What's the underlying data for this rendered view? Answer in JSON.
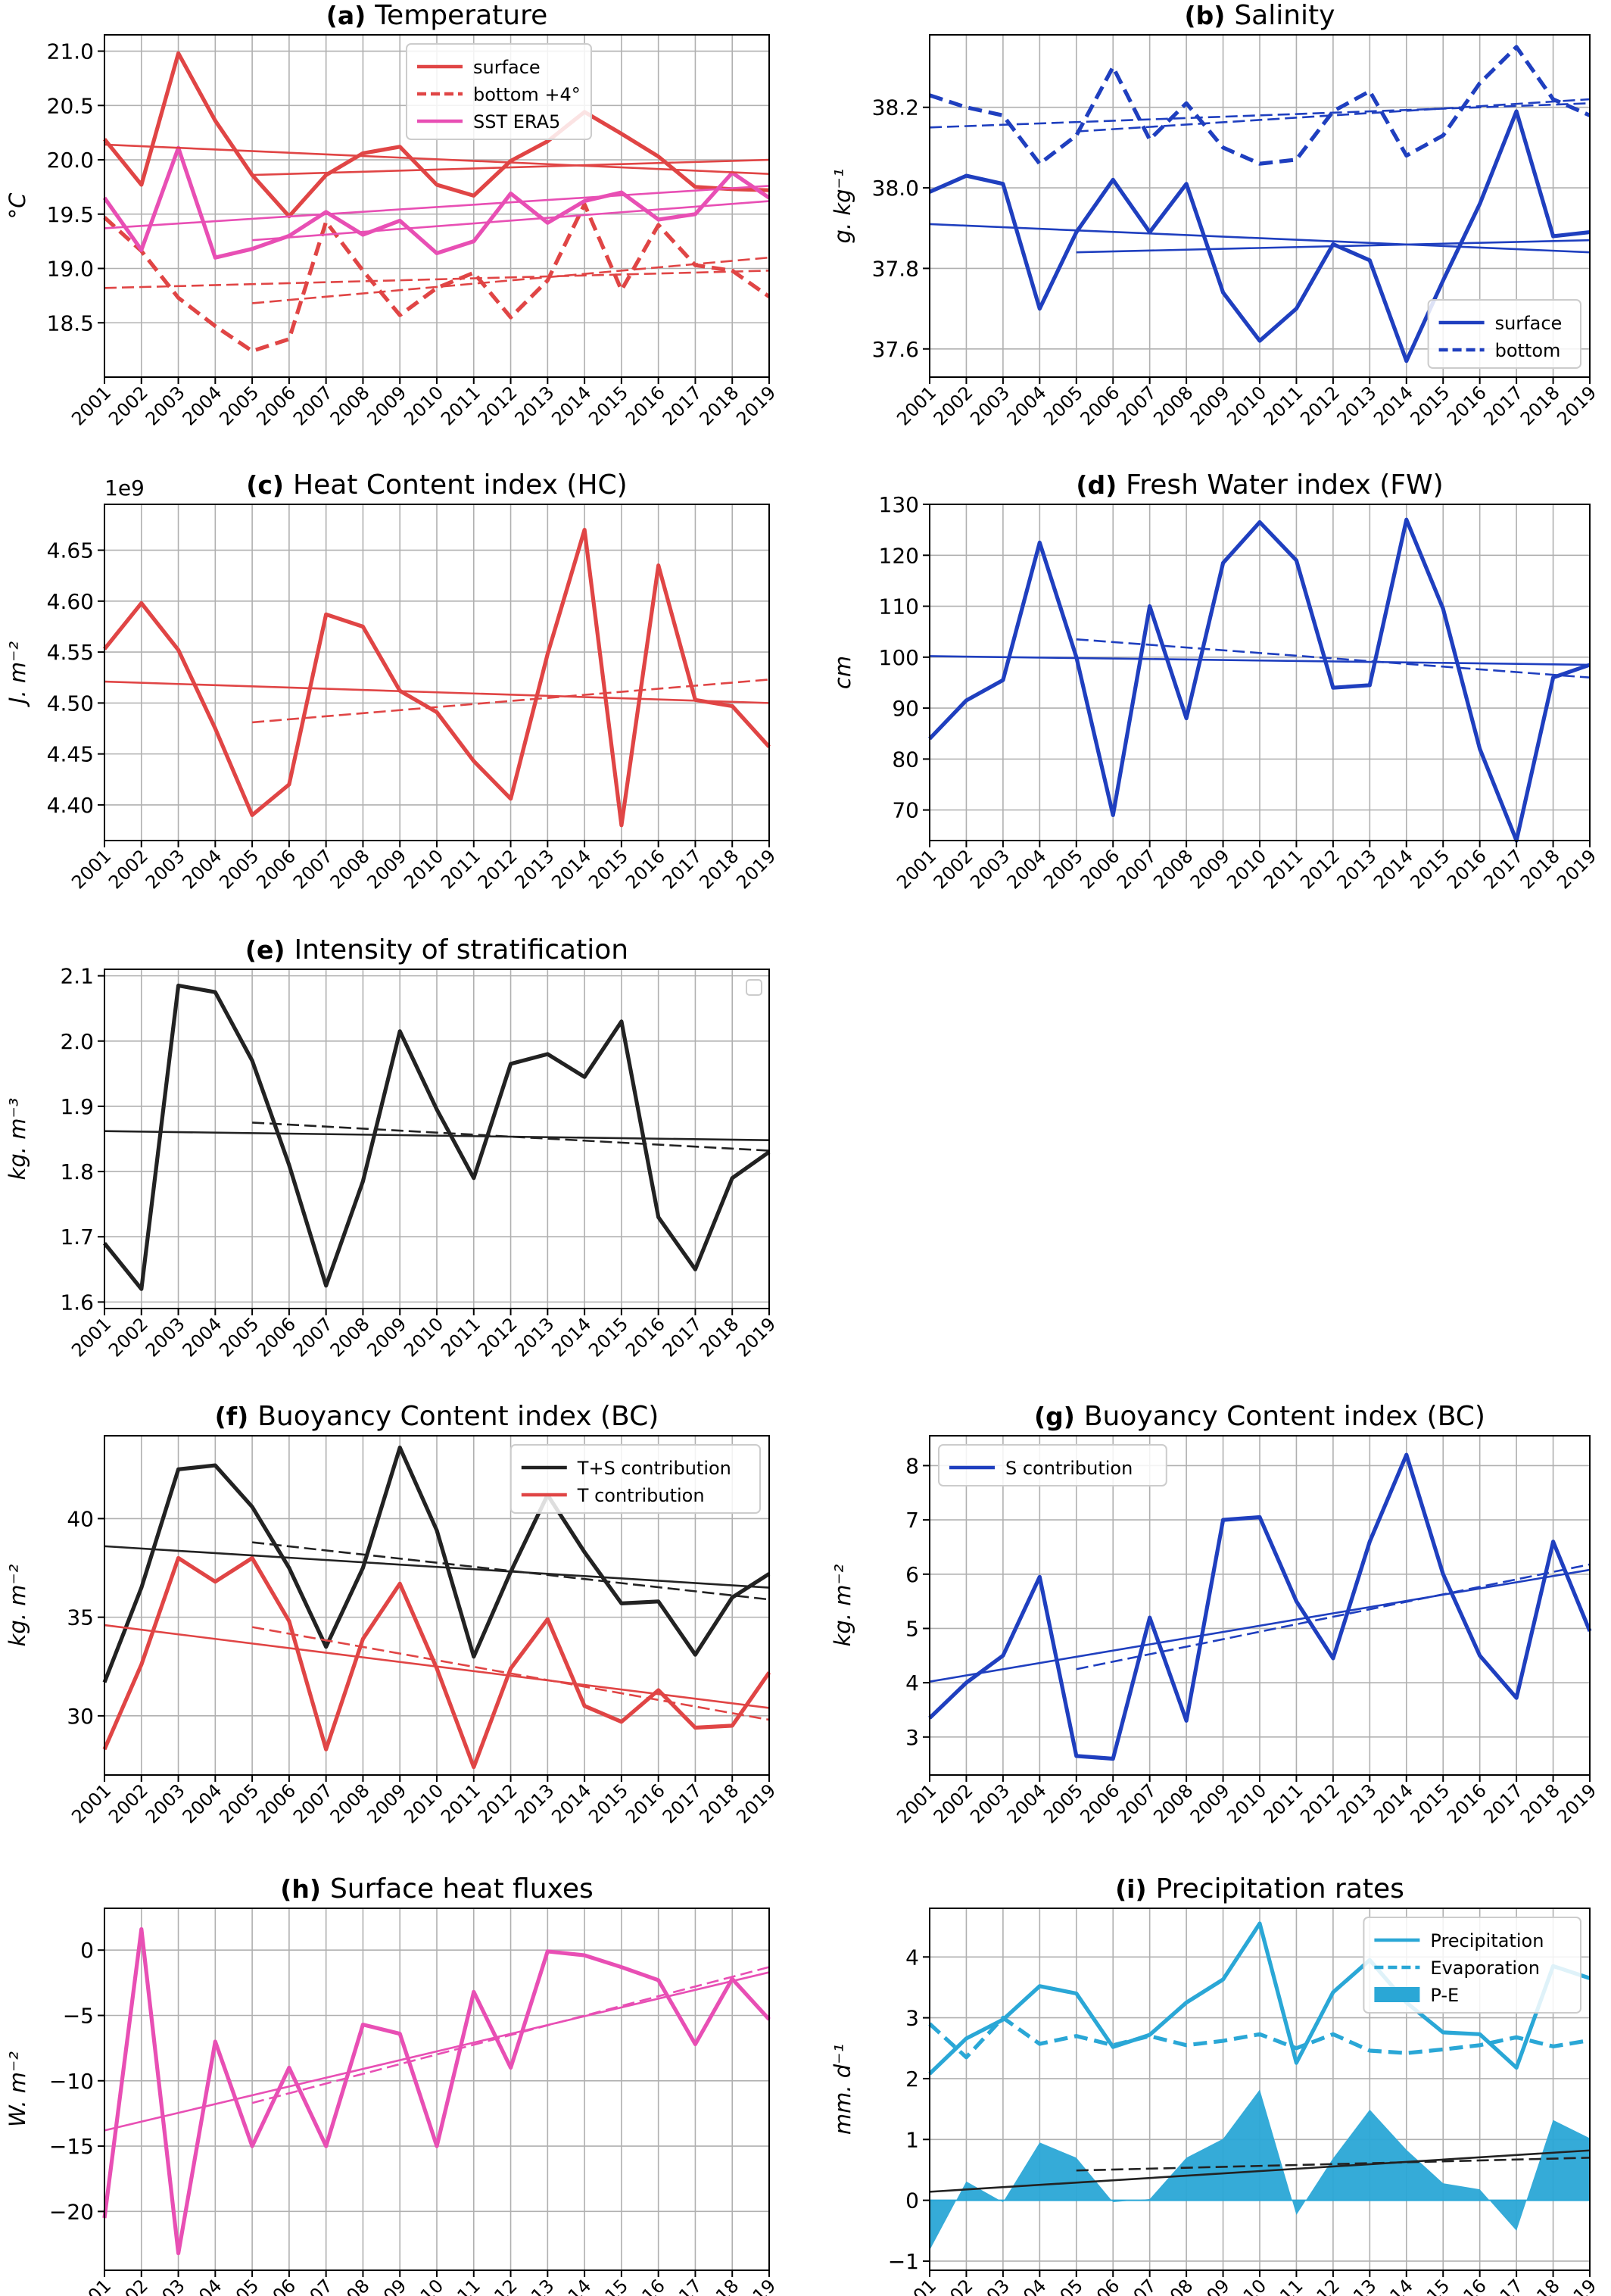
{
  "figure": {
    "years": [
      "2001",
      "2002",
      "2003",
      "2004",
      "2005",
      "2006",
      "2007",
      "2008",
      "2009",
      "2010",
      "2011",
      "2012",
      "2013",
      "2014",
      "2015",
      "2016",
      "2017",
      "2018",
      "2019"
    ]
  },
  "colors": {
    "red": "#e04545",
    "blue": "#1f3fbf",
    "black": "#222222",
    "pink": "#e84fb4",
    "cyan": "#2aa7d6",
    "grid": "#b0b0b0"
  },
  "chart_data": [
    {
      "id": "a",
      "type": "line",
      "title_prefix": "(a)",
      "title": "Temperature",
      "ylabel": "°C",
      "ylim": [
        18.0,
        21.15
      ],
      "yticks": [
        18.5,
        19.0,
        19.5,
        20.0,
        20.5,
        21.0
      ],
      "ytick_labels": [
        "18.5",
        "19.0",
        "19.5",
        "20.0",
        "20.5",
        "21.0"
      ],
      "grid": true,
      "legend_position": "top-center",
      "series": [
        {
          "name": "surface",
          "color": "red",
          "style": "solid",
          "values": [
            20.19,
            19.77,
            20.98,
            20.36,
            19.86,
            19.48,
            19.86,
            20.06,
            20.12,
            19.77,
            19.67,
            19.99,
            20.17,
            20.44,
            20.24,
            20.03,
            19.75,
            19.73,
            19.72
          ]
        },
        {
          "name": "bottom +4°",
          "color": "red",
          "style": "dashed",
          "values": [
            19.47,
            19.16,
            18.73,
            18.47,
            18.24,
            18.35,
            19.43,
            18.98,
            18.57,
            18.82,
            18.96,
            18.55,
            18.89,
            19.59,
            18.8,
            19.4,
            19.03,
            18.98,
            18.74
          ]
        },
        {
          "name": "SST ERA5",
          "color": "pink",
          "style": "solid",
          "values": [
            19.65,
            19.17,
            20.11,
            19.1,
            19.18,
            19.3,
            19.52,
            19.31,
            19.44,
            19.14,
            19.25,
            19.69,
            19.42,
            19.62,
            19.7,
            19.45,
            19.5,
            19.88,
            19.65
          ]
        }
      ],
      "trends": [
        {
          "color": "red",
          "style": "solid",
          "x0": "2001",
          "y0": 20.14,
          "x1": "2019",
          "y1": 19.87
        },
        {
          "color": "red",
          "style": "solid",
          "x0": "2005",
          "y0": 19.86,
          "x1": "2019",
          "y1": 20.0
        },
        {
          "color": "red",
          "style": "dashed",
          "x0": "2001",
          "y0": 18.82,
          "x1": "2019",
          "y1": 18.98
        },
        {
          "color": "red",
          "style": "dashed",
          "x0": "2005",
          "y0": 18.68,
          "x1": "2019",
          "y1": 19.1
        },
        {
          "color": "pink",
          "style": "solid",
          "x0": "2001",
          "y0": 19.37,
          "x1": "2019",
          "y1": 19.76
        },
        {
          "color": "pink",
          "style": "solid",
          "x0": "2005",
          "y0": 19.26,
          "x1": "2019",
          "y1": 19.62
        }
      ]
    },
    {
      "id": "b",
      "type": "line",
      "title_prefix": "(b)",
      "title": "Salinity",
      "ylabel": "g. kg⁻¹",
      "ylim": [
        37.53,
        38.38
      ],
      "yticks": [
        37.6,
        37.8,
        38.0,
        38.2
      ],
      "ytick_labels": [
        "37.6",
        "37.8",
        "38.0",
        "38.2"
      ],
      "grid": true,
      "legend_position": "bottom-right",
      "series": [
        {
          "name": "surface",
          "color": "blue",
          "style": "solid",
          "values": [
            37.99,
            38.03,
            38.01,
            37.7,
            37.89,
            38.02,
            37.89,
            38.01,
            37.74,
            37.62,
            37.7,
            37.86,
            37.82,
            37.57,
            37.77,
            37.96,
            38.19,
            37.88,
            37.89
          ]
        },
        {
          "name": "bottom",
          "color": "blue",
          "style": "dashed",
          "values": [
            38.23,
            38.2,
            38.18,
            38.06,
            38.13,
            38.3,
            38.12,
            38.21,
            38.1,
            38.06,
            38.07,
            38.19,
            38.24,
            38.08,
            38.13,
            38.26,
            38.35,
            38.22,
            38.18
          ]
        }
      ],
      "trends": [
        {
          "color": "blue",
          "style": "solid",
          "x0": "2001",
          "y0": 37.91,
          "x1": "2019",
          "y1": 37.84
        },
        {
          "color": "blue",
          "style": "solid",
          "x0": "2005",
          "y0": 37.84,
          "x1": "2019",
          "y1": 37.87
        },
        {
          "color": "blue",
          "style": "dashed",
          "x0": "2001",
          "y0": 38.15,
          "x1": "2019",
          "y1": 38.21
        },
        {
          "color": "blue",
          "style": "dashed",
          "x0": "2005",
          "y0": 38.14,
          "x1": "2019",
          "y1": 38.22
        }
      ]
    },
    {
      "id": "c",
      "type": "line",
      "title_prefix": "(c)",
      "title": "Heat Content index (HC)",
      "ylabel": "J. m⁻²",
      "offset_label": "1e9",
      "ylim": [
        4.365,
        4.695
      ],
      "yticks": [
        4.4,
        4.45,
        4.5,
        4.55,
        4.6,
        4.65
      ],
      "ytick_labels": [
        "4.40",
        "4.45",
        "4.50",
        "4.55",
        "4.60",
        "4.65"
      ],
      "grid": true,
      "series": [
        {
          "name": "HC",
          "color": "red",
          "style": "solid",
          "values": [
            4.553,
            4.598,
            4.552,
            4.475,
            4.39,
            4.42,
            4.587,
            4.575,
            4.512,
            4.491,
            4.443,
            4.406,
            4.548,
            4.67,
            4.38,
            4.635,
            4.503,
            4.497,
            4.457
          ]
        }
      ],
      "trends": [
        {
          "color": "red",
          "style": "solid",
          "x0": "2001",
          "y0": 4.521,
          "x1": "2019",
          "y1": 4.5
        },
        {
          "color": "red",
          "style": "dashed",
          "x0": "2005",
          "y0": 4.481,
          "x1": "2019",
          "y1": 4.523
        }
      ]
    },
    {
      "id": "d",
      "type": "line",
      "title_prefix": "(d)",
      "title": "Fresh Water index (FW)",
      "ylabel": "cm",
      "ylim": [
        64.0,
        130.0
      ],
      "yticks": [
        70,
        80,
        90,
        100,
        110,
        120,
        130
      ],
      "ytick_labels": [
        "70",
        "80",
        "90",
        "100",
        "110",
        "120",
        "130"
      ],
      "grid": true,
      "series": [
        {
          "name": "FW",
          "color": "blue",
          "style": "solid",
          "values": [
            84.0,
            91.5,
            95.5,
            122.5,
            100.0,
            69.0,
            110.0,
            88.0,
            118.5,
            126.5,
            119.0,
            94.0,
            94.5,
            127.0,
            109.5,
            82.0,
            64.0,
            96.0,
            98.5
          ]
        }
      ],
      "trends": [
        {
          "color": "blue",
          "style": "solid",
          "x0": "2001",
          "y0": 100.2,
          "x1": "2019",
          "y1": 98.5
        },
        {
          "color": "blue",
          "style": "dashed",
          "x0": "2005",
          "y0": 103.5,
          "x1": "2019",
          "y1": 96.0
        }
      ]
    },
    {
      "id": "e",
      "type": "line",
      "title_prefix": "(e)",
      "title": "Intensity of stratification",
      "ylabel": "kg. m⁻³",
      "ylim": [
        1.59,
        2.11
      ],
      "yticks": [
        1.6,
        1.7,
        1.8,
        1.9,
        2.0,
        2.1
      ],
      "ytick_labels": [
        "1.6",
        "1.7",
        "1.8",
        "1.9",
        "2.0",
        "2.1"
      ],
      "grid": true,
      "empty_legend": true,
      "series": [
        {
          "name": "stratification",
          "color": "black",
          "style": "solid",
          "values": [
            1.69,
            1.62,
            2.085,
            2.075,
            1.97,
            1.81,
            1.625,
            1.785,
            2.015,
            1.895,
            1.79,
            1.965,
            1.98,
            1.945,
            2.03,
            1.73,
            1.65,
            1.79,
            1.83
          ]
        }
      ],
      "trends": [
        {
          "color": "black",
          "style": "solid",
          "x0": "2001",
          "y0": 1.862,
          "x1": "2019",
          "y1": 1.848
        },
        {
          "color": "black",
          "style": "dashed",
          "x0": "2005",
          "y0": 1.875,
          "x1": "2019",
          "y1": 1.832
        }
      ]
    },
    {
      "id": "f",
      "type": "line",
      "title_prefix": "(f)",
      "title": "Buoyancy Content index (BC)",
      "ylabel": "kg. m⁻²",
      "ylim": [
        27.0,
        44.2
      ],
      "yticks": [
        30,
        35,
        40
      ],
      "ytick_labels": [
        "30",
        "35",
        "40"
      ],
      "grid": true,
      "legend_position": "top-right",
      "series": [
        {
          "name": "T+S contribution",
          "color": "black",
          "style": "solid",
          "values": [
            31.7,
            36.5,
            42.5,
            42.7,
            40.6,
            37.5,
            33.5,
            37.5,
            43.6,
            39.4,
            33.0,
            37.3,
            41.2,
            38.3,
            35.7,
            35.8,
            33.1,
            36.0,
            37.2
          ]
        },
        {
          "name": "T contribution",
          "color": "red",
          "style": "solid",
          "values": [
            28.3,
            32.6,
            38.0,
            36.8,
            38.0,
            34.8,
            28.3,
            33.9,
            36.7,
            32.4,
            27.4,
            32.4,
            34.9,
            30.5,
            29.7,
            31.3,
            29.4,
            29.5,
            32.2
          ]
        }
      ],
      "trends": [
        {
          "color": "black",
          "style": "solid",
          "x0": "2001",
          "y0": 38.6,
          "x1": "2019",
          "y1": 36.5
        },
        {
          "color": "black",
          "style": "dashed",
          "x0": "2005",
          "y0": 38.8,
          "x1": "2019",
          "y1": 35.9
        },
        {
          "color": "red",
          "style": "solid",
          "x0": "2001",
          "y0": 34.6,
          "x1": "2019",
          "y1": 30.4
        },
        {
          "color": "red",
          "style": "dashed",
          "x0": "2005",
          "y0": 34.5,
          "x1": "2019",
          "y1": 29.8
        }
      ]
    },
    {
      "id": "g",
      "type": "line",
      "title_prefix": "(g)",
      "title": "Buoyancy Content index (BC)",
      "ylabel": "kg. m⁻²",
      "ylim": [
        2.3,
        8.55
      ],
      "yticks": [
        3,
        4,
        5,
        6,
        7,
        8
      ],
      "ytick_labels": [
        "3",
        "4",
        "5",
        "6",
        "7",
        "8"
      ],
      "grid": true,
      "legend_position": "top-left",
      "series": [
        {
          "name": "S contribution",
          "color": "blue",
          "style": "solid",
          "values": [
            3.35,
            4.0,
            4.5,
            5.95,
            2.65,
            2.6,
            5.2,
            3.3,
            7.0,
            7.05,
            5.5,
            4.45,
            6.6,
            8.2,
            6.0,
            4.5,
            3.72,
            6.6,
            4.95
          ]
        }
      ],
      "trends": [
        {
          "color": "blue",
          "style": "solid",
          "x0": "2001",
          "y0": 4.02,
          "x1": "2019",
          "y1": 6.08
        },
        {
          "color": "blue",
          "style": "dashed",
          "x0": "2005",
          "y0": 4.25,
          "x1": "2019",
          "y1": 6.18
        }
      ]
    },
    {
      "id": "h",
      "type": "line",
      "title_prefix": "(h)",
      "title": "Surface heat fluxes",
      "ylabel": "W. m⁻²",
      "ylim": [
        -24.5,
        3.2
      ],
      "yticks": [
        -20,
        -15,
        -10,
        -5,
        0
      ],
      "ytick_labels": [
        "−20",
        "−15",
        "−10",
        "−5",
        "0"
      ],
      "grid": true,
      "series": [
        {
          "name": "heat fluxes",
          "color": "pink",
          "style": "solid",
          "values": [
            -20.5,
            1.6,
            -23.2,
            -7.0,
            -15.0,
            -9.0,
            -15.0,
            -5.7,
            -6.4,
            -15.0,
            -3.2,
            -9.0,
            -0.1,
            -0.4,
            -1.3,
            -2.3,
            -7.2,
            -2.2,
            -5.3
          ]
        }
      ],
      "trends": [
        {
          "color": "pink",
          "style": "solid",
          "x0": "2001",
          "y0": -13.8,
          "x1": "2019",
          "y1": -1.7
        },
        {
          "color": "pink",
          "style": "dashed",
          "x0": "2005",
          "y0": -11.7,
          "x1": "2019",
          "y1": -1.3
        }
      ]
    },
    {
      "id": "i",
      "type": "line",
      "title_prefix": "(i)",
      "title": "Precipitation rates",
      "ylabel": "mm. d⁻¹",
      "ylim": [
        -1.15,
        4.8
      ],
      "yticks": [
        -1,
        0,
        1,
        2,
        3,
        4
      ],
      "ytick_labels": [
        "−1",
        "0",
        "1",
        "2",
        "3",
        "4"
      ],
      "grid": true,
      "legend_position": "top-right",
      "series": [
        {
          "name": "Precipitation",
          "color": "cyan",
          "style": "solid",
          "values": [
            2.08,
            2.66,
            2.97,
            3.52,
            3.4,
            2.52,
            2.72,
            3.25,
            3.63,
            4.55,
            2.26,
            3.42,
            3.95,
            3.25,
            2.76,
            2.73,
            2.18,
            3.85,
            3.65
          ]
        },
        {
          "name": "Evaporation",
          "color": "cyan",
          "style": "dashed",
          "values": [
            2.9,
            2.35,
            3.0,
            2.57,
            2.7,
            2.55,
            2.7,
            2.55,
            2.62,
            2.73,
            2.5,
            2.73,
            2.46,
            2.42,
            2.48,
            2.55,
            2.68,
            2.53,
            2.63
          ]
        }
      ],
      "area": {
        "name": "P-E",
        "color": "cyan",
        "values": [
          -0.82,
          0.31,
          -0.03,
          0.95,
          0.7,
          -0.03,
          0.02,
          0.7,
          1.01,
          1.82,
          -0.24,
          0.69,
          1.49,
          0.83,
          0.28,
          0.18,
          -0.5,
          1.32,
          1.02
        ]
      },
      "trends": [
        {
          "color": "black",
          "style": "solid",
          "x0": "2001",
          "y0": 0.14,
          "x1": "2019",
          "y1": 0.82
        },
        {
          "color": "black",
          "style": "dashed",
          "x0": "2005",
          "y0": 0.49,
          "x1": "2019",
          "y1": 0.7
        }
      ]
    }
  ]
}
